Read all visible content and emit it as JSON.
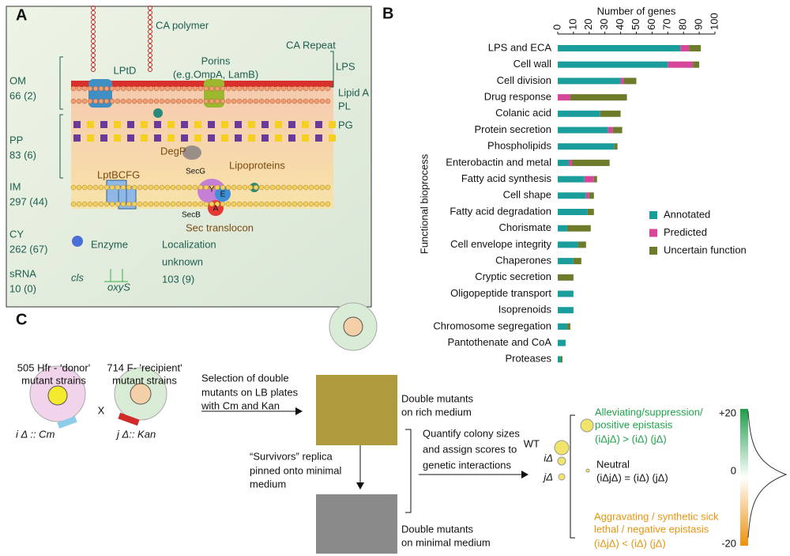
{
  "panel_a": {
    "label": "A",
    "ca_polymer": "CA polymer",
    "ca_repeat": "CA Repeat",
    "porins": [
      "Porins",
      "(e.g.OmpA, LamB)"
    ],
    "lptd": "LPtD",
    "lps": "LPS",
    "lipid_a": "Lipid A",
    "pl": "PL",
    "pg": "PG",
    "degp": "DegP",
    "lipoproteins": "Lipoproteins",
    "secg": "SecG",
    "lptbcfg": "LptBCFG",
    "secb": "SecB",
    "sec_parts": [
      "Y",
      "E",
      "A"
    ],
    "sec_translocon": "Sec translocon",
    "enzyme": "Enzyme",
    "localization": [
      "Localization",
      "unknown",
      "103 (9)"
    ],
    "compartments": [
      {
        "name": "OM",
        "count": "66 (2)"
      },
      {
        "name": "PP",
        "count": "83 (6)"
      },
      {
        "name": "IM",
        "count": "297 (44)"
      },
      {
        "name": "CY",
        "count": "262 (67)"
      },
      {
        "name": "sRNA",
        "count": "10 (0)"
      }
    ],
    "cls": "cls",
    "oxys": "oxyS"
  },
  "chart_data": {
    "type": "bar",
    "orientation": "horizontal",
    "stacked": true,
    "panel_label": "B",
    "xlabel": "Number of genes",
    "ylabel": "Functional bioprocess",
    "categories": [
      "LPS and ECA",
      "Cell wall",
      "Cell division",
      "Drug response",
      "Colanic acid",
      "Protein secretion",
      "Phospholipids",
      "Enterobactin and metal",
      "Fatty acid synthesis",
      "Cell shape",
      "Fatty acid degradation",
      "Chorismate",
      "Cell envelope integrity",
      "Chaperones",
      "Cryptic secretion",
      "Oligopeptide transport",
      "Isoprenoids",
      "Chromosome segregation",
      "Pantothenate and CoA",
      "Proteases"
    ],
    "series": [
      {
        "name": "Annotated",
        "color": "#1b9e9b",
        "values": [
          78,
          70,
          40,
          0,
          27,
          32,
          36,
          7,
          17,
          18,
          19,
          6,
          13,
          10,
          0,
          10,
          10,
          6,
          5,
          2
        ]
      },
      {
        "name": "Predicted",
        "color": "#d6479b",
        "values": [
          5.5,
          16,
          2,
          8,
          0,
          3,
          0,
          2,
          6,
          2,
          0,
          0,
          0,
          0,
          0,
          0,
          0,
          0,
          0,
          0
        ]
      },
      {
        "name": "Uncertain function",
        "color": "#6e7b2b",
        "values": [
          7.5,
          4,
          8,
          36,
          13,
          6,
          2,
          24,
          2,
          3,
          4,
          15,
          5,
          5,
          10,
          0,
          0,
          2,
          0,
          1
        ]
      }
    ],
    "xlim": [
      0,
      100
    ],
    "xticks": [
      0,
      10,
      20,
      30,
      40,
      50,
      60,
      70,
      80,
      90,
      100
    ],
    "legend": "right"
  },
  "panel_c": {
    "label": "C",
    "donor": [
      "505 Hfr - 'donor'",
      "mutant strains"
    ],
    "recipient": [
      "714 F- 'recipient'",
      "mutant strains"
    ],
    "cross": "X",
    "donor_genotype": "i Δ :: Cm",
    "recipient_genotype": "j Δ:: Kan",
    "selection": [
      "Selection of double",
      "mutants on LB plates",
      "with Cm and Kan"
    ],
    "rich": [
      "Double mutants",
      "on rich medium"
    ],
    "survivors": [
      "“Survivors” replica",
      "pinned onto minimal",
      "medium"
    ],
    "minimal": [
      "Double mutants",
      "on minimal medium"
    ],
    "quantify": [
      "Quantify colony sizes",
      "and assign scores to",
      "genetic interactions"
    ],
    "wt": "WT",
    "i": "iΔ",
    "j": "jΔ",
    "alleviating": [
      "Alleviating/suppression/",
      "positive epistasis",
      "(iΔjΔ) > (iΔ) (jΔ)"
    ],
    "neutral": [
      "Neutral",
      "(iΔjΔ) = (iΔ) (jΔ)"
    ],
    "aggravating": [
      "Aggravating / synthetic sick",
      "lethal / negative epistasis",
      "(iΔjΔ) < (iΔ) (jΔ)"
    ],
    "scale": [
      "+20",
      "0",
      "-20"
    ]
  }
}
